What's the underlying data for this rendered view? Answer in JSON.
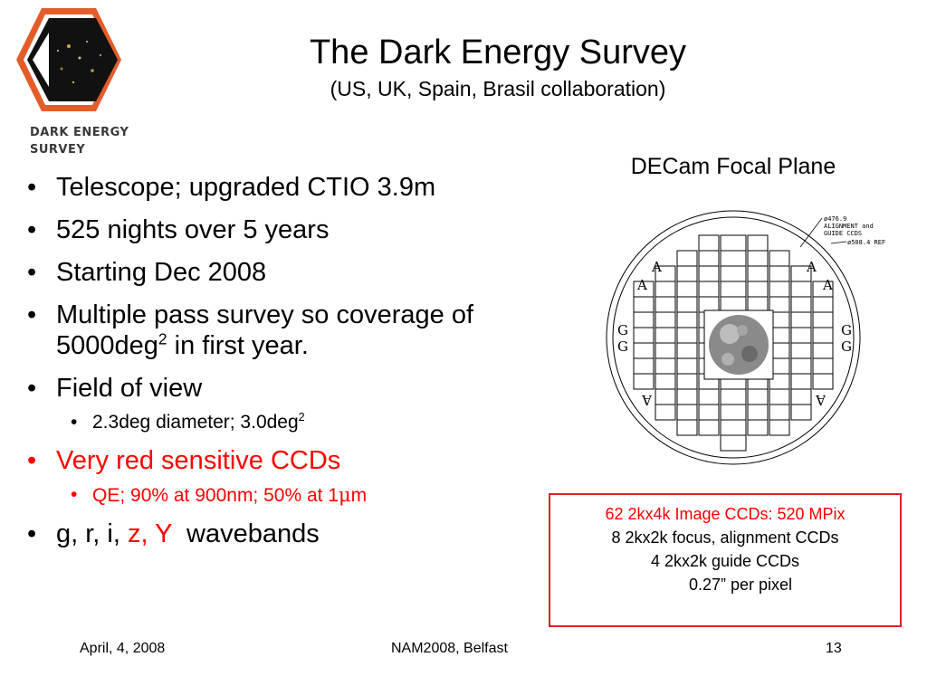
{
  "logo": {
    "line1": "DARK ENERGY",
    "line2": "SURVEY"
  },
  "header": {
    "title": "The Dark Energy Survey",
    "subtitle": "(US, UK, Spain, Brasil collaboration)"
  },
  "bullets": {
    "item1": "Telescope; upgraded CTIO 3.9m",
    "item2": "525 nights over 5 years",
    "item3": "Starting Dec 2008",
    "item4_line1": "Multiple pass survey so coverage of",
    "item4_line2_prefix": "5000deg",
    "item4_sup": "2",
    "item4_line2_suffix": " in first year.",
    "item5": "Field of view",
    "item5_sub_prefix": "2.3deg diameter; 3.0deg",
    "item5_sub_sup": "2",
    "item6": "Very red sensitive CCDs",
    "item6_sub_prefix": "QE; 90% at 900nm; 50% at 1",
    "item6_sub_mu": "μ",
    "item6_sub_suffix": "m",
    "item7_prefix": "g, r, i, ",
    "item7_red": "z, Y",
    "item7_suffix": "  wavebands"
  },
  "focal_plane": {
    "caption": "DECam Focal Plane",
    "annotation1": "ø476.9",
    "annotation2": "ALIGNMENT and",
    "annotation3": "GUIDE CCDS",
    "annotation4": "ø508.4 REF",
    "label_a": "A",
    "label_g": "G"
  },
  "infobox": {
    "line1": "62 2kx4k Image CCDs: 520 MPix",
    "line2": "8 2kx2k focus, alignment CCDs",
    "line3": "4 2kx2k guide CCDs",
    "line4": "0.27” per pixel"
  },
  "footer": {
    "date": "April, 4, 2008",
    "event": "NAM2008, Belfast",
    "page": "13"
  },
  "colors": {
    "accent_red": "#ff0000",
    "logo_orange": "#e35d2b",
    "box_border": "#d9222a"
  }
}
